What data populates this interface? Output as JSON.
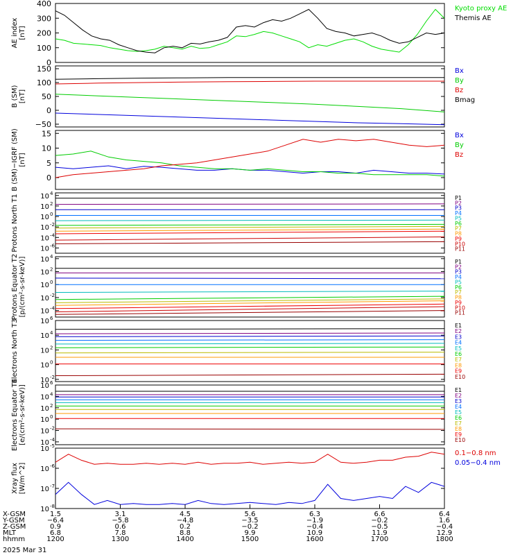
{
  "chart_data": [
    {
      "type": "line",
      "ylabel": "AE index",
      "yunit": "[nT]",
      "yscale": "linear",
      "ylim": [
        0,
        400
      ],
      "yticks": [
        "0",
        "100",
        "200",
        "300",
        "400"
      ],
      "legend": [
        {
          "label": "Kyoto proxy AE",
          "color": "#00dd00"
        },
        {
          "label": "Themis AE",
          "color": "#000000"
        }
      ],
      "series": [
        {
          "name": "Kyoto proxy AE",
          "color": "#00dd00",
          "values": [
            160,
            150,
            130,
            125,
            120,
            115,
            100,
            90,
            80,
            75,
            80,
            90,
            110,
            100,
            90,
            110,
            95,
            100,
            120,
            140,
            180,
            175,
            190,
            210,
            200,
            180,
            160,
            140,
            100,
            120,
            110,
            130,
            150,
            160,
            140,
            110,
            90,
            80,
            70,
            120,
            190,
            280,
            360,
            300
          ]
        },
        {
          "name": "Themis AE",
          "color": "#000000",
          "values": [
            350,
            320,
            270,
            220,
            180,
            160,
            150,
            120,
            100,
            80,
            70,
            65,
            100,
            110,
            100,
            130,
            125,
            140,
            150,
            170,
            240,
            250,
            240,
            270,
            290,
            280,
            300,
            330,
            360,
            300,
            230,
            210,
            200,
            180,
            190,
            200,
            180,
            150,
            130,
            140,
            170,
            200,
            190,
            200
          ]
        }
      ]
    },
    {
      "type": "line",
      "ylabel": "B (SM)",
      "yunit": "[nT]",
      "yscale": "linear",
      "ylim": [
        -60,
        160
      ],
      "yticks": [
        "−50",
        "0",
        "50",
        "100",
        "150"
      ],
      "legend": [
        {
          "label": "Bx",
          "color": "#0000dd"
        },
        {
          "label": "By",
          "color": "#00cc00"
        },
        {
          "label": "Bz",
          "color": "#dd0000"
        },
        {
          "label": "Bmag",
          "color": "#000000"
        }
      ],
      "series": [
        {
          "name": "Bx",
          "color": "#0000dd",
          "values": [
            -10,
            -15,
            -20,
            -25,
            -30,
            -35,
            -40,
            -45,
            -48,
            -52
          ]
        },
        {
          "name": "By",
          "color": "#00cc00",
          "values": [
            58,
            52,
            46,
            40,
            34,
            28,
            22,
            14,
            6,
            -6
          ]
        },
        {
          "name": "Bz",
          "color": "#dd0000",
          "values": [
            95,
            98,
            100,
            102,
            103,
            104,
            105,
            105,
            105,
            105
          ]
        },
        {
          "name": "Bmag",
          "color": "#000000",
          "values": [
            112,
            114,
            116,
            117,
            118,
            118,
            118,
            118,
            118,
            118
          ]
        }
      ]
    },
    {
      "type": "line",
      "ylabel": "B (SM)−IGRF (SM)",
      "yunit": "[nT]",
      "yscale": "linear",
      "ylim": [
        -4,
        16
      ],
      "yticks": [
        "0",
        "5",
        "10",
        "15"
      ],
      "legend": [
        {
          "label": "Bx",
          "color": "#0000dd"
        },
        {
          "label": "By",
          "color": "#00cc00"
        },
        {
          "label": "Bz",
          "color": "#dd0000"
        }
      ],
      "series": [
        {
          "name": "Bx",
          "color": "#0000dd",
          "values": [
            3.5,
            3,
            3.5,
            4,
            3,
            3.8,
            3.5,
            3,
            2.5,
            2.5,
            3,
            2.5,
            2.5,
            2,
            1.5,
            2,
            2,
            1.5,
            2.5,
            2,
            1.5,
            1.5,
            1.2
          ]
        },
        {
          "name": "By",
          "color": "#00cc00",
          "values": [
            7.5,
            8,
            9,
            7,
            6,
            5.5,
            5,
            4,
            3.5,
            3,
            3,
            2.5,
            3,
            2.5,
            2,
            2,
            1.5,
            1.5,
            1,
            1,
            1,
            1,
            0.5
          ]
        },
        {
          "name": "Bz",
          "color": "#dd0000",
          "values": [
            0,
            1,
            1.5,
            2,
            2.5,
            3,
            4,
            4.5,
            5,
            6,
            7,
            8,
            9,
            11,
            13,
            12,
            13,
            12.5,
            13,
            12,
            11,
            10.5,
            11
          ]
        }
      ]
    },
    {
      "type": "line",
      "ylabel": "Protons North T1",
      "yunit": "",
      "yscale": "log",
      "ylim": [
        -7,
        4.5
      ],
      "yticks": [
        "10^4",
        "10^2",
        "10^0",
        "10^-2",
        "10^-4",
        "10^-6"
      ],
      "legend": [
        {
          "label": "P1",
          "color": "#000000"
        },
        {
          "label": "P2",
          "color": "#800080"
        },
        {
          "label": "P3",
          "color": "#0000cc"
        },
        {
          "label": "P4",
          "color": "#0070ff"
        },
        {
          "label": "P5",
          "color": "#00bbbb"
        },
        {
          "label": "P6",
          "color": "#00cc00"
        },
        {
          "label": "P7",
          "color": "#bbbb00"
        },
        {
          "label": "P8",
          "color": "#ff9900"
        },
        {
          "label": "P9",
          "color": "#ee0000"
        },
        {
          "label": "P10",
          "color": "#cc0000"
        },
        {
          "label": "P11",
          "color": "#990000"
        }
      ],
      "series": [
        {
          "name": "P1",
          "color": "#000000",
          "values": [
            3.5,
            3.5
          ]
        },
        {
          "name": "P2",
          "color": "#800080",
          "values": [
            2.3,
            2.4
          ]
        },
        {
          "name": "P3",
          "color": "#0000cc",
          "values": [
            1.3,
            1.3
          ]
        },
        {
          "name": "P4",
          "color": "#0070ff",
          "values": [
            0.2,
            0.2
          ]
        },
        {
          "name": "P5",
          "color": "#00bbbb",
          "values": [
            -0.8,
            -0.7
          ]
        },
        {
          "name": "P6",
          "color": "#00cc00",
          "values": [
            -1.7,
            -1.5
          ]
        },
        {
          "name": "P7",
          "color": "#bbbb00",
          "values": [
            -2.2,
            -1.9
          ]
        },
        {
          "name": "P8",
          "color": "#ff9900",
          "values": [
            -2.8,
            -2.4
          ]
        },
        {
          "name": "P9",
          "color": "#ee0000",
          "values": [
            -3.3,
            -2.8
          ]
        },
        {
          "name": "P10",
          "color": "#cc0000",
          "values": [
            -4.5,
            -3.9
          ]
        },
        {
          "name": "P11",
          "color": "#990000",
          "values": [
            -5.2,
            -4.8
          ]
        }
      ]
    },
    {
      "type": "line",
      "ylabel": "Protons Equator T2",
      "yunit": "[p/(cm²-s-sr-keV)]",
      "yscale": "log",
      "ylim": [
        -5,
        4.3
      ],
      "yticks": [
        "10^4",
        "10^2",
        "10^0",
        "10^-2",
        "10^-4"
      ],
      "legend": [
        {
          "label": "P1",
          "color": "#000000"
        },
        {
          "label": "P2",
          "color": "#800080"
        },
        {
          "label": "P3",
          "color": "#0000cc"
        },
        {
          "label": "P4",
          "color": "#0070ff"
        },
        {
          "label": "P5",
          "color": "#00bbbb"
        },
        {
          "label": "P6",
          "color": "#00cc00"
        },
        {
          "label": "P7",
          "color": "#bbbb00"
        },
        {
          "label": "P8",
          "color": "#ff9900"
        },
        {
          "label": "P9",
          "color": "#ee0000"
        },
        {
          "label": "P10",
          "color": "#cc0000"
        },
        {
          "label": "P11",
          "color": "#990000"
        }
      ],
      "series": [
        {
          "name": "P1",
          "color": "#000000",
          "values": [
            2.5,
            2.5
          ]
        },
        {
          "name": "P2",
          "color": "#800080",
          "values": [
            1.8,
            1.8
          ]
        },
        {
          "name": "P3",
          "color": "#0000cc",
          "values": [
            1.0,
            0.9
          ]
        },
        {
          "name": "P4",
          "color": "#0070ff",
          "values": [
            0,
            0
          ]
        },
        {
          "name": "P5",
          "color": "#00bbbb",
          "values": [
            -1.2,
            -1
          ]
        },
        {
          "name": "P6",
          "color": "#00cc00",
          "values": [
            -2.3,
            -1.8
          ]
        },
        {
          "name": "P7",
          "color": "#bbbb00",
          "values": [
            -2.8,
            -2.2
          ]
        },
        {
          "name": "P8",
          "color": "#ff9900",
          "values": [
            -3.2,
            -2.5
          ]
        },
        {
          "name": "P9",
          "color": "#ee0000",
          "values": [
            -3.7,
            -3
          ]
        },
        {
          "name": "P10",
          "color": "#cc0000",
          "values": [
            -4.2,
            -3.4
          ]
        },
        {
          "name": "P11",
          "color": "#990000",
          "values": [
            -4.6,
            -4
          ]
        }
      ]
    },
    {
      "type": "line",
      "ylabel": "Electrons North T3",
      "yunit": "",
      "yscale": "log",
      "ylim": [
        -2.3,
        6
      ],
      "yticks": [
        "10^6",
        "10^4",
        "10^2",
        "10^0",
        "10^-2"
      ],
      "legend": [
        {
          "label": "E1",
          "color": "#000000"
        },
        {
          "label": "E2",
          "color": "#800080"
        },
        {
          "label": "E3",
          "color": "#0000cc"
        },
        {
          "label": "E4",
          "color": "#0070ff"
        },
        {
          "label": "E5",
          "color": "#00bbbb"
        },
        {
          "label": "E6",
          "color": "#00cc00"
        },
        {
          "label": "E7",
          "color": "#bbbb00"
        },
        {
          "label": "E8",
          "color": "#ff9900"
        },
        {
          "label": "E9",
          "color": "#ee0000"
        },
        {
          "label": "E10",
          "color": "#990000"
        }
      ],
      "series": [
        {
          "name": "E1",
          "color": "#000000",
          "values": [
            4.8,
            4.9
          ]
        },
        {
          "name": "E2",
          "color": "#800080",
          "values": [
            4.2,
            4.3
          ]
        },
        {
          "name": "E3",
          "color": "#0000cc",
          "values": [
            3.8,
            3.9
          ]
        },
        {
          "name": "E4",
          "color": "#0070ff",
          "values": [
            3.3,
            3.4
          ]
        },
        {
          "name": "E5",
          "color": "#00bbbb",
          "values": [
            2.8,
            2.9
          ]
        },
        {
          "name": "E6",
          "color": "#00cc00",
          "values": [
            2.3,
            2.4
          ]
        },
        {
          "name": "E7",
          "color": "#bbbb00",
          "values": [
            1.6,
            1.7
          ]
        },
        {
          "name": "E8",
          "color": "#ff9900",
          "values": [
            1.0,
            1.0
          ]
        },
        {
          "name": "E9",
          "color": "#ee0000",
          "values": [
            0.1,
            0.1
          ]
        },
        {
          "name": "E10",
          "color": "#990000",
          "values": [
            -1.5,
            -1.3
          ]
        }
      ]
    },
    {
      "type": "line",
      "ylabel": "Electrons Equator T4",
      "yunit": "[e/(cm²-s-sr-keV)]",
      "yscale": "log",
      "ylim": [
        -4.5,
        6
      ],
      "yticks": [
        "10^6",
        "10^4",
        "10^2",
        "10^0",
        "10^-2",
        "10^-4"
      ],
      "legend": [
        {
          "label": "E1",
          "color": "#000000"
        },
        {
          "label": "E2",
          "color": "#800080"
        },
        {
          "label": "E3",
          "color": "#0000cc"
        },
        {
          "label": "E4",
          "color": "#0070ff"
        },
        {
          "label": "E5",
          "color": "#00bbbb"
        },
        {
          "label": "E6",
          "color": "#00cc00"
        },
        {
          "label": "E7",
          "color": "#bbbb00"
        },
        {
          "label": "E8",
          "color": "#ff9900"
        },
        {
          "label": "E9",
          "color": "#ee0000"
        },
        {
          "label": "E10",
          "color": "#990000"
        }
      ],
      "series": [
        {
          "name": "E1",
          "color": "#000000",
          "values": [
            4.9,
            4.9
          ]
        },
        {
          "name": "E2",
          "color": "#800080",
          "values": [
            4.3,
            4.3
          ]
        },
        {
          "name": "E3",
          "color": "#0000cc",
          "values": [
            3.9,
            3.9
          ]
        },
        {
          "name": "E4",
          "color": "#0070ff",
          "values": [
            3.4,
            3.4
          ]
        },
        {
          "name": "E5",
          "color": "#00bbbb",
          "values": [
            2.9,
            2.9
          ]
        },
        {
          "name": "E6",
          "color": "#00cc00",
          "values": [
            2.3,
            2.3
          ]
        },
        {
          "name": "E7",
          "color": "#bbbb00",
          "values": [
            1.7,
            1.7
          ]
        },
        {
          "name": "E8",
          "color": "#ff9900",
          "values": [
            1.0,
            1.0
          ]
        },
        {
          "name": "E9",
          "color": "#ee0000",
          "values": [
            0.1,
            0.1
          ]
        },
        {
          "name": "E10",
          "color": "#990000",
          "values": [
            -1.7,
            -1.8
          ]
        }
      ]
    },
    {
      "type": "line",
      "ylabel": "Xray flux",
      "yunit": "[W/m^2]",
      "yscale": "log",
      "ylim": [
        -8,
        -5
      ],
      "yticks": [
        "10^-5",
        "10^-6",
        "10^-7",
        "10^-8"
      ],
      "legend": [
        {
          "label": "0.1−0.8 nm",
          "color": "#dd0000"
        },
        {
          "label": "0.05−0.4 nm",
          "color": "#0000dd"
        }
      ],
      "series": [
        {
          "name": "0.1−0.8 nm",
          "color": "#dd0000",
          "values": [
            -5.7,
            -5.3,
            -5.6,
            -5.8,
            -5.75,
            -5.8,
            -5.8,
            -5.75,
            -5.8,
            -5.75,
            -5.8,
            -5.7,
            -5.8,
            -5.75,
            -5.75,
            -5.7,
            -5.8,
            -5.75,
            -5.7,
            -5.75,
            -5.7,
            -5.3,
            -5.7,
            -5.75,
            -5.7,
            -5.6,
            -5.6,
            -5.45,
            -5.4,
            -5.2,
            -5.3
          ]
        },
        {
          "name": "0.05−0.4 nm",
          "color": "#0000dd",
          "values": [
            -7.3,
            -6.7,
            -7.3,
            -7.8,
            -7.6,
            -7.8,
            -7.75,
            -7.8,
            -7.8,
            -7.75,
            -7.8,
            -7.6,
            -7.75,
            -7.8,
            -7.75,
            -7.7,
            -7.75,
            -7.8,
            -7.7,
            -7.75,
            -7.6,
            -6.8,
            -7.5,
            -7.6,
            -7.5,
            -7.4,
            -7.5,
            -6.9,
            -7.2,
            -6.7,
            -6.9
          ]
        }
      ]
    }
  ],
  "x_axis": {
    "rows": [
      {
        "label": "X-GSM",
        "values": [
          "1.5",
          "3.1",
          "4.5",
          "5.6",
          "6.3",
          "6.6",
          "6.4"
        ]
      },
      {
        "label": "Y-GSM",
        "values": [
          "−6.4",
          "−5.8",
          "−4.8",
          "−3.5",
          "−1.9",
          "−0.2",
          "1.6"
        ]
      },
      {
        "label": "Z-GSM",
        "values": [
          "0.9",
          "0.6",
          "0.2",
          "−0.2",
          "−0.4",
          "−0.5",
          "−0.4"
        ]
      },
      {
        "label": "MLT",
        "values": [
          "6.8",
          "7.8",
          "8.8",
          "9.9",
          "10.9",
          "11.9",
          "12.9"
        ]
      },
      {
        "label": "hhmm",
        "values": [
          "1200",
          "1300",
          "1400",
          "1500",
          "1600",
          "1700",
          "1800"
        ]
      }
    ],
    "date": "2025 Mar 31"
  }
}
